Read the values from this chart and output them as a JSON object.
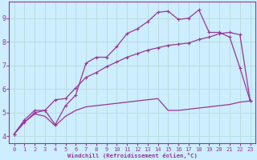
{
  "title": "",
  "xlabel": "Windchill (Refroidissement éolien,°C)",
  "ylabel": "",
  "bg_color": "#cceeff",
  "line_color": "#993399",
  "grid_color": "#bbdddd",
  "xlim": [
    -0.5,
    23.5
  ],
  "ylim": [
    3.7,
    9.7
  ],
  "xticks": [
    0,
    1,
    2,
    3,
    4,
    5,
    6,
    7,
    8,
    9,
    10,
    11,
    12,
    13,
    14,
    15,
    16,
    17,
    18,
    19,
    20,
    21,
    22,
    23
  ],
  "yticks": [
    4,
    5,
    6,
    7,
    8,
    9
  ],
  "line1_x": [
    0,
    1,
    2,
    3,
    4,
    5,
    6,
    7,
    8,
    9,
    10,
    11,
    12,
    13,
    14,
    15,
    16,
    17,
    18,
    19,
    20,
    21,
    22,
    23
  ],
  "line1_y": [
    4.1,
    4.7,
    5.1,
    5.1,
    4.5,
    5.3,
    5.75,
    7.1,
    7.35,
    7.35,
    7.8,
    8.35,
    8.55,
    8.85,
    9.25,
    9.3,
    8.95,
    9.0,
    9.35,
    8.4,
    8.4,
    8.2,
    6.9,
    5.5
  ],
  "line2_x": [
    0,
    1,
    2,
    3,
    4,
    5,
    6,
    7,
    8,
    9,
    10,
    11,
    12,
    13,
    14,
    15,
    16,
    17,
    18,
    19,
    20,
    21,
    22,
    23
  ],
  "line2_y": [
    4.1,
    4.6,
    5.0,
    5.1,
    5.55,
    5.6,
    6.05,
    6.5,
    6.7,
    6.95,
    7.15,
    7.35,
    7.5,
    7.65,
    7.75,
    7.85,
    7.9,
    7.95,
    8.1,
    8.2,
    8.35,
    8.4,
    8.3,
    5.5
  ],
  "line3_x": [
    0,
    1,
    2,
    3,
    4,
    5,
    6,
    7,
    8,
    9,
    10,
    11,
    12,
    13,
    14,
    15,
    16,
    17,
    18,
    19,
    20,
    21,
    22,
    23
  ],
  "line3_y": [
    4.1,
    4.6,
    4.95,
    4.85,
    4.45,
    4.85,
    5.1,
    5.25,
    5.3,
    5.35,
    5.4,
    5.45,
    5.5,
    5.55,
    5.6,
    5.1,
    5.1,
    5.15,
    5.2,
    5.25,
    5.3,
    5.35,
    5.45,
    5.5
  ]
}
